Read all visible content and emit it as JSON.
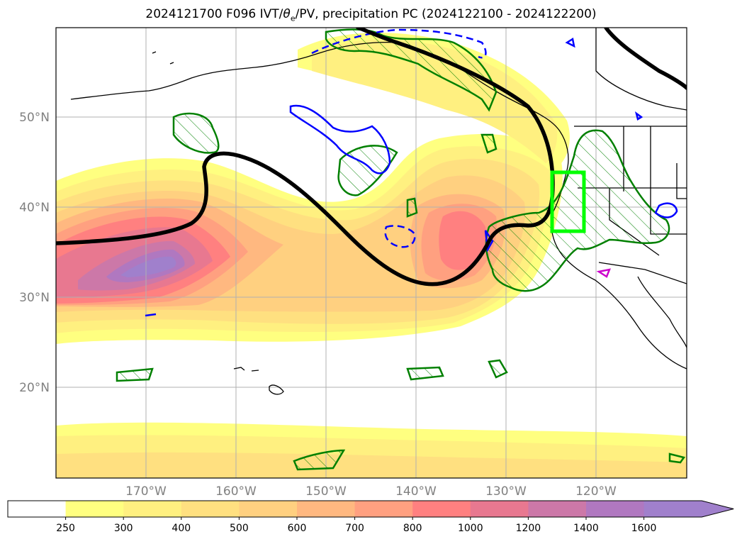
{
  "title": {
    "date_run": "2024121700",
    "forecast": "F096",
    "ivt_prefix": "IVT/",
    "theta_symbol": "θ",
    "theta_sub": "e",
    "rest": "/PV, precipitation PC (2024122100 - 2024122200)"
  },
  "map": {
    "lon_labels": [
      "170°W",
      "160°W",
      "150°W",
      "140°W",
      "130°W",
      "120°W"
    ],
    "lat_labels": [
      "50°N",
      "40°N",
      "30°N",
      "20°N"
    ],
    "target_box_color": "#00ff00",
    "grid": true
  },
  "colorbar": {
    "levels": [
      "250",
      "300",
      "400",
      "500",
      "600",
      "700",
      "800",
      "1000",
      "1200",
      "1400",
      "1600"
    ],
    "colors": [
      "#ffffff",
      "#ffff80",
      "#fff080",
      "#ffe080",
      "#ffd080",
      "#ffb880",
      "#ffa080",
      "#ff8080",
      "#e87890",
      "#cc78a8",
      "#b078c0",
      "#a080cc"
    ],
    "extend": "max"
  },
  "legend_colors": {
    "theta_contour": "#000000",
    "pv_contour": "#0000ff",
    "precip_contour": "#008000",
    "magenta_contour": "#cc00cc"
  }
}
